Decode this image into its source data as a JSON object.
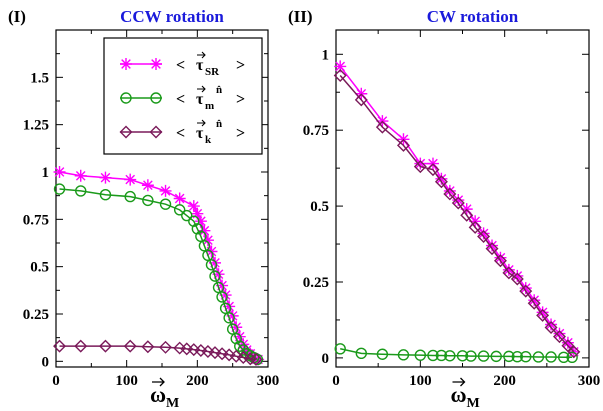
{
  "chart_data": [
    {
      "type": "line",
      "panel_label": "(I)",
      "title": "CCW rotation",
      "xlabel_main": "ω",
      "xlabel_sub": "M",
      "xlim": [
        0,
        300
      ],
      "ylim": [
        -0.03,
        1.75
      ],
      "xticks": [
        "0",
        "100",
        "200",
        "300"
      ],
      "yticks": [
        "0",
        "0.25",
        "0.5",
        "0.75",
        "1",
        "1.25",
        "1.5"
      ],
      "legend_position": "top-right",
      "series": [
        {
          "name": "τSR",
          "legend": {
            "open": "<",
            "sym": "τ",
            "sub": "SR",
            "sup": "",
            "close": ">"
          },
          "color": "#ff00ff",
          "marker": "star",
          "x": [
            5,
            35,
            70,
            105,
            130,
            155,
            175,
            195,
            200,
            205,
            210,
            215,
            220,
            225,
            230,
            235,
            240,
            245,
            250,
            255,
            260,
            265,
            270,
            275,
            280,
            283,
            286
          ],
          "y": [
            1.0,
            0.98,
            0.97,
            0.96,
            0.93,
            0.9,
            0.86,
            0.82,
            0.78,
            0.74,
            0.69,
            0.64,
            0.58,
            0.52,
            0.46,
            0.4,
            0.35,
            0.29,
            0.24,
            0.18,
            0.13,
            0.09,
            0.06,
            0.04,
            0.02,
            0.01,
            0.01
          ]
        },
        {
          "name": "τm n̂",
          "legend": {
            "open": "<",
            "sym": "τ",
            "sub": "m",
            "sup": "n̂",
            "close": ">"
          },
          "color": "#1a9a1a",
          "marker": "circle",
          "x": [
            5,
            35,
            70,
            105,
            130,
            155,
            175,
            185,
            195,
            200,
            205,
            210,
            215,
            220,
            225,
            230,
            235,
            240,
            245,
            250,
            255,
            260,
            265,
            270,
            275,
            280,
            285
          ],
          "y": [
            0.91,
            0.9,
            0.88,
            0.87,
            0.85,
            0.83,
            0.8,
            0.77,
            0.74,
            0.7,
            0.66,
            0.61,
            0.56,
            0.51,
            0.45,
            0.39,
            0.34,
            0.28,
            0.23,
            0.17,
            0.12,
            0.08,
            0.06,
            0.04,
            0.03,
            0.02,
            0.01
          ]
        },
        {
          "name": "τk n̂",
          "legend": {
            "open": "<",
            "sym": "τ",
            "sub": "k",
            "sup": "n̂",
            "close": ">"
          },
          "color": "#7a1a5a",
          "marker": "diamond",
          "x": [
            5,
            35,
            70,
            105,
            130,
            155,
            175,
            185,
            195,
            205,
            215,
            225,
            235,
            245,
            255,
            265,
            275,
            283
          ],
          "y": [
            0.08,
            0.08,
            0.08,
            0.08,
            0.077,
            0.074,
            0.07,
            0.066,
            0.062,
            0.057,
            0.052,
            0.046,
            0.04,
            0.034,
            0.027,
            0.02,
            0.013,
            0.01
          ]
        }
      ]
    },
    {
      "type": "line",
      "panel_label": "(II)",
      "title": "CW rotation",
      "xlabel_main": "ω",
      "xlabel_sub": "M",
      "xlim": [
        0,
        300
      ],
      "ylim": [
        -0.03,
        1.08
      ],
      "xticks": [
        "0",
        "100",
        "200",
        "300"
      ],
      "yticks": [
        "0",
        "0.25",
        "0.5",
        "0.75",
        "1"
      ],
      "series": [
        {
          "name": "τSR",
          "color": "#ff00ff",
          "marker": "star",
          "x": [
            5,
            30,
            55,
            80,
            100,
            115,
            125,
            135,
            145,
            155,
            165,
            175,
            185,
            195,
            205,
            215,
            225,
            235,
            245,
            255,
            265,
            275,
            282
          ],
          "y": [
            0.96,
            0.87,
            0.78,
            0.72,
            0.64,
            0.64,
            0.59,
            0.55,
            0.52,
            0.49,
            0.45,
            0.41,
            0.37,
            0.33,
            0.29,
            0.27,
            0.23,
            0.19,
            0.15,
            0.11,
            0.08,
            0.05,
            0.02
          ]
        },
        {
          "name": "τm n̂",
          "color": "#1a9a1a",
          "marker": "circle",
          "x": [
            5,
            30,
            55,
            80,
            100,
            115,
            125,
            135,
            150,
            160,
            175,
            190,
            205,
            215,
            225,
            240,
            255,
            270,
            280
          ],
          "y": [
            0.03,
            0.015,
            0.012,
            0.01,
            0.009,
            0.008,
            0.008,
            0.007,
            0.007,
            0.006,
            0.006,
            0.005,
            0.005,
            0.004,
            0.004,
            0.003,
            0.003,
            0.002,
            0.002
          ]
        },
        {
          "name": "τk n̂",
          "color": "#7a1a5a",
          "marker": "diamond",
          "x": [
            5,
            30,
            55,
            80,
            100,
            115,
            125,
            135,
            145,
            155,
            165,
            175,
            185,
            195,
            205,
            215,
            225,
            235,
            245,
            255,
            265,
            275,
            282
          ],
          "y": [
            0.93,
            0.85,
            0.76,
            0.7,
            0.63,
            0.62,
            0.58,
            0.54,
            0.51,
            0.47,
            0.43,
            0.4,
            0.36,
            0.32,
            0.28,
            0.26,
            0.22,
            0.18,
            0.14,
            0.1,
            0.07,
            0.04,
            0.02
          ]
        }
      ]
    }
  ]
}
